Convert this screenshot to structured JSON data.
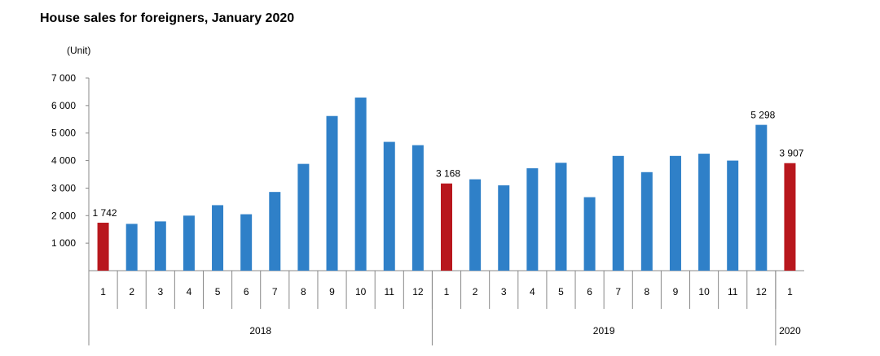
{
  "chart_data": {
    "type": "bar",
    "title": "House sales for foreigners, January 2020",
    "ylabel": "(Unit)",
    "xlabel": "",
    "ylim": [
      0,
      7000
    ],
    "y_ticks": [
      {
        "value": 1000,
        "label": "1 000"
      },
      {
        "value": 2000,
        "label": "2 000"
      },
      {
        "value": 3000,
        "label": "3 000"
      },
      {
        "value": 4000,
        "label": "4 000"
      },
      {
        "value": 5000,
        "label": "5 000"
      },
      {
        "value": 6000,
        "label": "6 000"
      },
      {
        "value": 7000,
        "label": "7 000"
      }
    ],
    "grid": false,
    "legend": "none",
    "categories": [
      "1",
      "2",
      "3",
      "4",
      "5",
      "6",
      "7",
      "8",
      "9",
      "10",
      "11",
      "12",
      "1",
      "2",
      "3",
      "4",
      "5",
      "6",
      "7",
      "8",
      "9",
      "10",
      "11",
      "12",
      "1"
    ],
    "values": [
      1742,
      1700,
      1790,
      2000,
      2380,
      2050,
      2860,
      3880,
      5620,
      6290,
      4680,
      4560,
      3168,
      3320,
      3100,
      3720,
      3920,
      2670,
      4170,
      3580,
      4170,
      4250,
      4000,
      5298,
      3907
    ],
    "highlight_indices": [
      0,
      12,
      24
    ],
    "year_groups": [
      {
        "label": "2018",
        "count": 12
      },
      {
        "label": "2019",
        "count": 12
      },
      {
        "label": "2020",
        "count": 1
      }
    ],
    "data_labels": [
      {
        "index": 0,
        "text": "1 742"
      },
      {
        "index": 12,
        "text": "3 168"
      },
      {
        "index": 23,
        "text": "5 298"
      },
      {
        "index": 24,
        "text": "3 907"
      }
    ],
    "colors": {
      "normal": "#2f80c8",
      "highlight": "#b8171d",
      "axis": "#888888"
    }
  }
}
